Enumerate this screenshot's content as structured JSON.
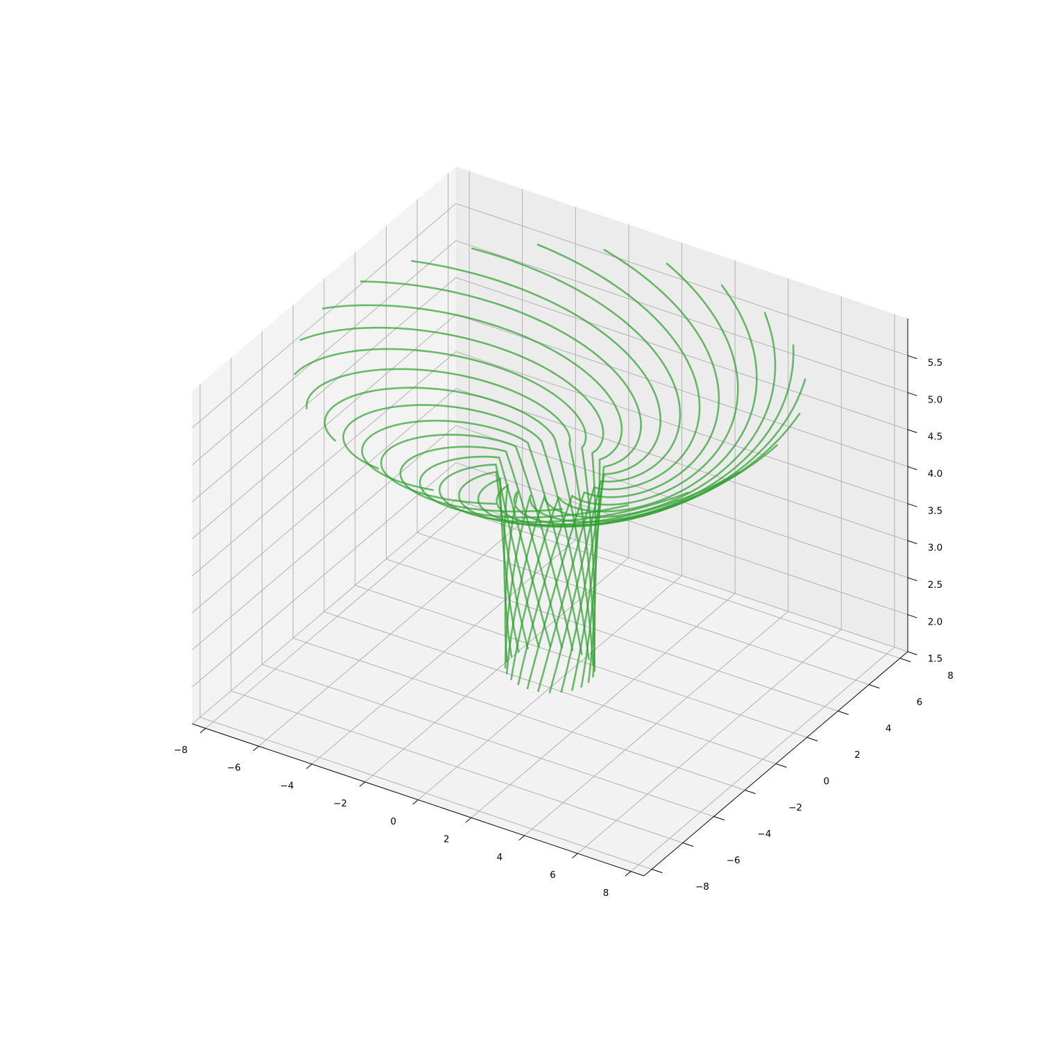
{
  "chart_data": {
    "type": "line3d",
    "title": "",
    "xlabel": "",
    "ylabel": "",
    "zlabel": "",
    "xlim": [
      -8.5,
      8.5
    ],
    "ylim": [
      -8.5,
      8.5
    ],
    "zlim": [
      1.5,
      6.0
    ],
    "x_ticks": [
      "−8",
      "−6",
      "−4",
      "−2",
      "0",
      "2",
      "4",
      "6",
      "8"
    ],
    "y_ticks": [
      "−8",
      "−6",
      "−4",
      "−2",
      "0",
      "2",
      "4",
      "6",
      "8"
    ],
    "z_ticks": [
      "1.5",
      "2.0",
      "2.5",
      "3.0",
      "3.5",
      "4.0",
      "4.5",
      "5.0",
      "5.5"
    ],
    "grid": true,
    "legend": "none",
    "series": [
      {
        "color": "#2ca02c",
        "strand_count": 24,
        "lower_radius": 1.45,
        "flare_start_z": 4.45,
        "z_range": [
          1.75,
          5.7
        ],
        "radius_range": [
          1.45,
          8.3
        ],
        "twist_turns": 0.55
      }
    ],
    "colors": {
      "line": "#2ca02c",
      "grid": "#b0b0b0",
      "pane_back": "#ececec",
      "pane_side": "#f3f3f3",
      "pane_floor": "#f2f2f2"
    }
  }
}
